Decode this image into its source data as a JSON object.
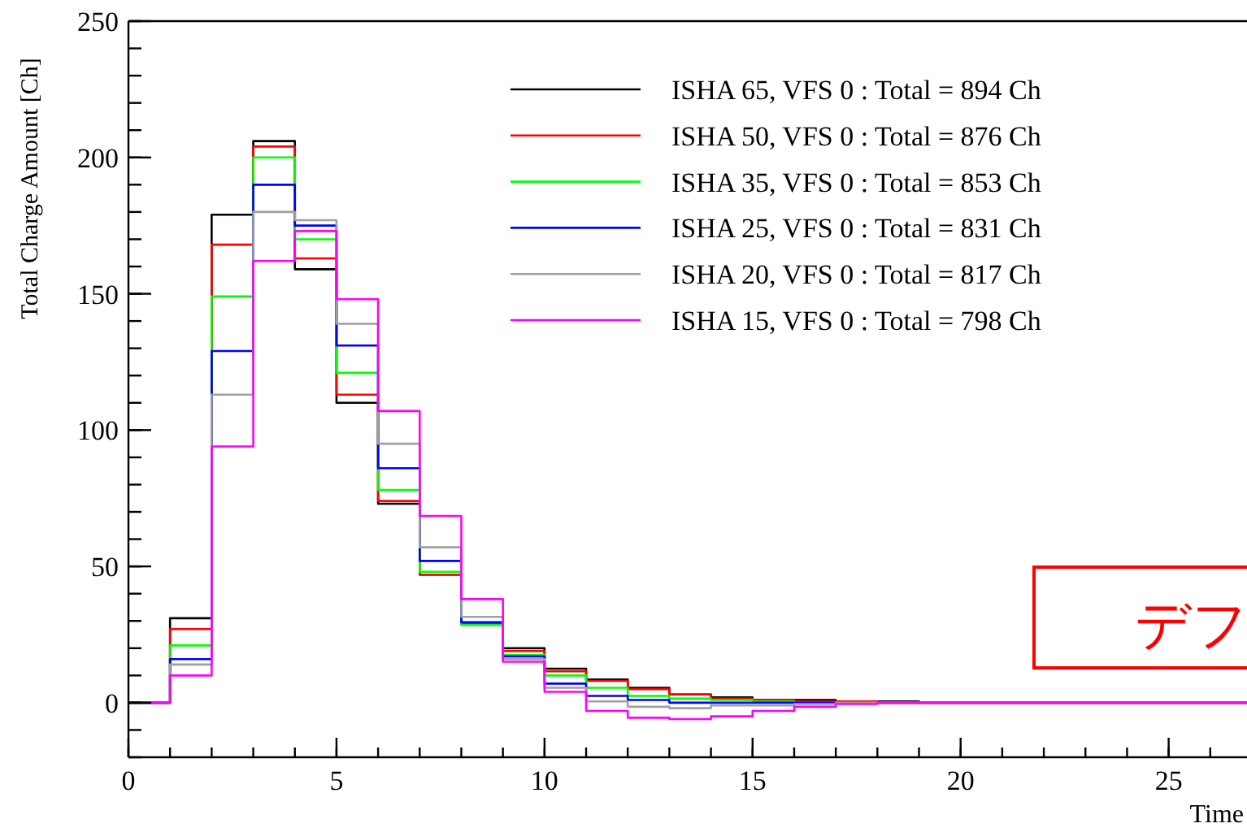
{
  "chart_data": {
    "type": "histogram",
    "xlabel": "Time",
    "ylabel": "Total Charge Amount [Ch]",
    "annotations": [
      "デフ"
    ],
    "bins": [
      0,
      1,
      2,
      3,
      4,
      5,
      6,
      7,
      8,
      9,
      10,
      11,
      12,
      13,
      14,
      15,
      16,
      17,
      18,
      19,
      20,
      21,
      22,
      23,
      24,
      25,
      26,
      27
    ],
    "xlim": [
      0,
      27
    ],
    "ylim": [
      -20,
      250
    ],
    "xticks": [
      0,
      5,
      10,
      15,
      20,
      25
    ],
    "yticks": [
      0,
      50,
      100,
      150,
      200,
      250
    ],
    "legend": "top right",
    "series": [
      {
        "name": "ISHA 65, VFS 0 : Total = 894 Ch",
        "color": "#000000",
        "values": [
          0,
          31,
          179,
          206,
          159,
          110,
          73,
          47,
          29,
          20,
          12.5,
          8.5,
          5.5,
          3,
          2,
          1,
          1,
          0.5,
          0.5,
          0,
          0,
          0,
          0,
          0,
          0,
          0,
          0
        ]
      },
      {
        "name": "ISHA 50, VFS 0 : Total = 876 Ch",
        "color": "#ff0000",
        "values": [
          0,
          27,
          168,
          204,
          163,
          113,
          74,
          47,
          29,
          19,
          11.5,
          8,
          5,
          3,
          1.5,
          1,
          0.5,
          0.5,
          0,
          0,
          0,
          0,
          0,
          0,
          0,
          0,
          0
        ]
      },
      {
        "name": "ISHA 35, VFS 0 : Total = 853 Ch",
        "color": "#00ff00",
        "values": [
          0,
          21,
          149,
          200,
          170,
          121,
          78,
          48,
          28.5,
          17.5,
          10,
          5.5,
          2.5,
          1.5,
          1,
          0.5,
          0,
          0,
          0,
          0,
          0,
          0,
          0,
          0,
          0,
          0,
          0
        ]
      },
      {
        "name": "ISHA 25, VFS 0 : Total = 831 Ch",
        "color": "#0000ff",
        "values": [
          0,
          16,
          129,
          190,
          175,
          131,
          86,
          52,
          29.5,
          17,
          7,
          2.5,
          1,
          0,
          0,
          0,
          0,
          0,
          0,
          0,
          0,
          0,
          0,
          0,
          0,
          0,
          0
        ]
      },
      {
        "name": "ISHA 20, VFS 0 : Total = 817 Ch",
        "color": "#a0a0a0",
        "values": [
          0,
          14,
          113,
          180,
          177,
          139,
          95,
          57,
          31.5,
          16,
          5.5,
          0.5,
          -1.5,
          -2,
          -1,
          -1,
          -0.5,
          0,
          0,
          0,
          0,
          0,
          0,
          0,
          0,
          0,
          0
        ]
      },
      {
        "name": "ISHA 15, VFS 0 : Total = 798 Ch",
        "color": "#ff00ff",
        "values": [
          0,
          10,
          94,
          162,
          173,
          148,
          107,
          68.5,
          38,
          15,
          4,
          -3,
          -5.5,
          -6,
          -5,
          -3,
          -1.5,
          -0.5,
          0,
          0,
          0,
          0,
          0,
          0,
          0,
          0,
          0
        ]
      }
    ]
  }
}
